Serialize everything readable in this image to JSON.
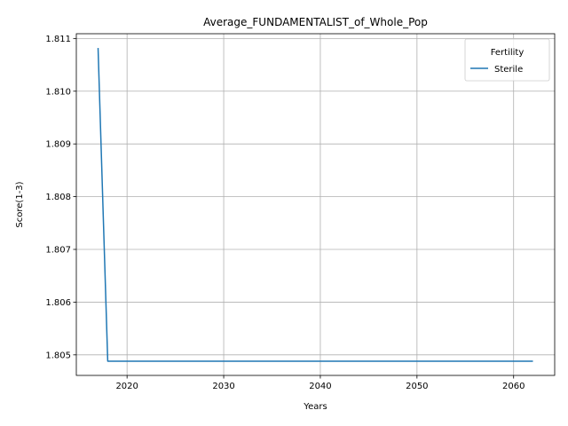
{
  "chart_data": {
    "type": "line",
    "title": "Average_FUNDAMENTALIST_of_Whole_Pop",
    "xlabel": "Years",
    "ylabel": "Score(1-3)",
    "xlim": [
      2014.75,
      2064.25
    ],
    "ylim": [
      1.80461,
      1.81109
    ],
    "xticks": [
      2020,
      2030,
      2040,
      2050,
      2060
    ],
    "xtick_labels": [
      "2020",
      "2030",
      "2040",
      "2050",
      "2060"
    ],
    "yticks": [
      1.805,
      1.806,
      1.807,
      1.808,
      1.809,
      1.81,
      1.811
    ],
    "ytick_labels": [
      "1.805",
      "1.806",
      "1.807",
      "1.808",
      "1.809",
      "1.810",
      "1.811"
    ],
    "grid": true,
    "legend": {
      "title": "Fertility",
      "placement": "upper-right"
    },
    "series": [
      {
        "name": "Sterile",
        "color": "#1f77b4",
        "x": [
          2017,
          2018,
          2019,
          2020,
          2021,
          2022,
          2023,
          2024,
          2025,
          2026,
          2027,
          2028,
          2029,
          2030,
          2031,
          2032,
          2033,
          2034,
          2035,
          2036,
          2037,
          2038,
          2039,
          2040,
          2041,
          2042,
          2043,
          2044,
          2045,
          2046,
          2047,
          2048,
          2049,
          2050,
          2051,
          2052,
          2053,
          2054,
          2055,
          2056,
          2057,
          2058,
          2059,
          2060,
          2061,
          2062
        ],
        "y": [
          1.81082,
          1.80488,
          1.80488,
          1.80488,
          1.80488,
          1.80488,
          1.80488,
          1.80488,
          1.80488,
          1.80488,
          1.80488,
          1.80488,
          1.80488,
          1.80488,
          1.80488,
          1.80488,
          1.80488,
          1.80488,
          1.80488,
          1.80488,
          1.80488,
          1.80488,
          1.80488,
          1.80488,
          1.80488,
          1.80488,
          1.80488,
          1.80488,
          1.80488,
          1.80488,
          1.80488,
          1.80488,
          1.80488,
          1.80488,
          1.80488,
          1.80488,
          1.80488,
          1.80488,
          1.80488,
          1.80488,
          1.80488,
          1.80488,
          1.80488,
          1.80488,
          1.80488,
          1.80488
        ]
      }
    ]
  }
}
